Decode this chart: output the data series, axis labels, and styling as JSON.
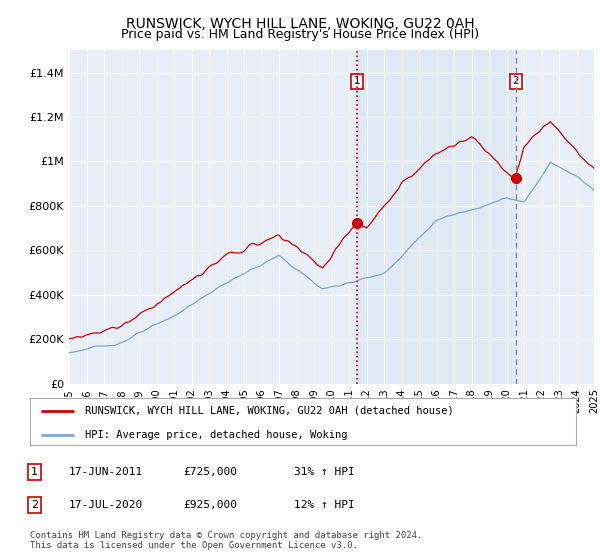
{
  "title": "RUNSWICK, WYCH HILL LANE, WOKING, GU22 0AH",
  "subtitle": "Price paid vs. HM Land Registry's House Price Index (HPI)",
  "ylim": [
    0,
    1500000
  ],
  "yticks": [
    0,
    200000,
    400000,
    600000,
    800000,
    1000000,
    1200000,
    1400000
  ],
  "ytick_labels": [
    "£0",
    "£200K",
    "£400K",
    "£600K",
    "£800K",
    "£1M",
    "£1.2M",
    "£1.4M"
  ],
  "background_color": "#e8eef8",
  "background_color_right": "#dce8f5",
  "plot_bg_color": "#e8eef8",
  "red_line_color": "#cc0000",
  "blue_line_color": "#6699cc",
  "vline_color": "#cc0000",
  "vline_color2": "#999999",
  "year_start": 1995,
  "year_end": 2025,
  "sale1_year": 2011.46,
  "sale2_year": 2020.54,
  "sale1_value": 725000,
  "sale2_value": 925000,
  "legend_label1": "RUNSWICK, WYCH HILL LANE, WOKING, GU22 0AH (detached house)",
  "legend_label2": "HPI: Average price, detached house, Woking",
  "table_row1": [
    "1",
    "17-JUN-2011",
    "£725,000",
    "31% ↑ HPI"
  ],
  "table_row2": [
    "2",
    "17-JUL-2020",
    "£925,000",
    "12% ↑ HPI"
  ],
  "footnote": "Contains HM Land Registry data © Crown copyright and database right 2024.\nThis data is licensed under the Open Government Licence v3.0.",
  "title_fontsize": 10,
  "subtitle_fontsize": 9
}
